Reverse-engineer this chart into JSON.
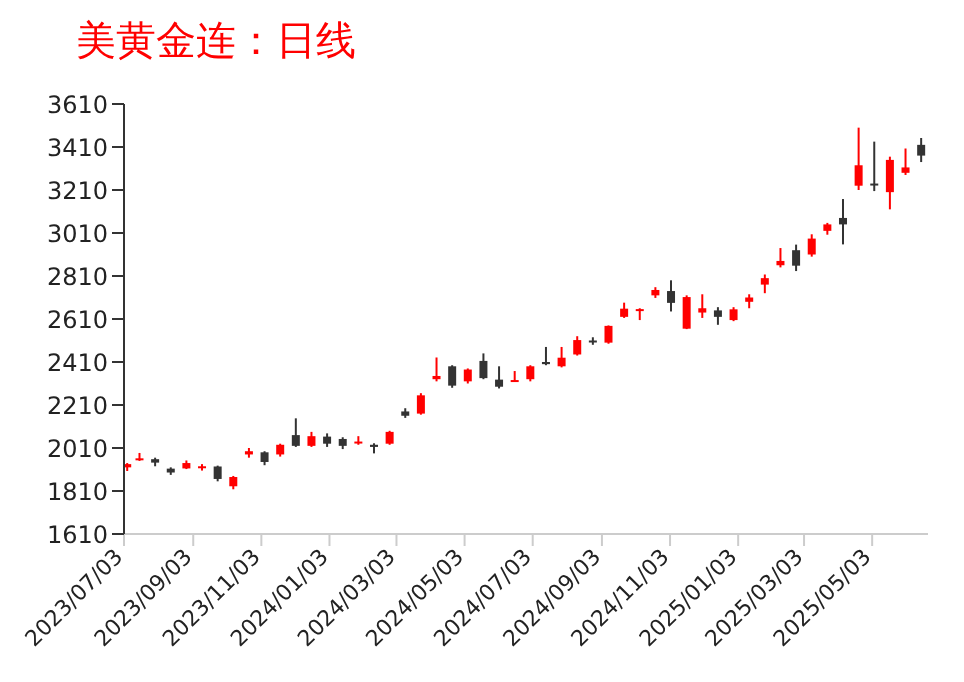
{
  "chart_data": {
    "type": "candlestick",
    "title": "美黄金连：日线",
    "x": [
      "2023-07-06",
      "2023-07-17",
      "2023-07-31",
      "2023-08-14",
      "2023-08-28",
      "2023-09-11",
      "2023-09-25",
      "2023-10-09",
      "2023-10-23",
      "2023-11-06",
      "2023-11-20",
      "2023-12-04",
      "2023-12-18",
      "2024-01-01",
      "2024-01-15",
      "2024-01-29",
      "2024-02-12",
      "2024-02-26",
      "2024-03-11",
      "2024-03-25",
      "2024-04-08",
      "2024-04-22",
      "2024-05-06",
      "2024-05-20",
      "2024-06-03",
      "2024-06-17",
      "2024-07-01",
      "2024-07-15",
      "2024-07-29",
      "2024-08-12",
      "2024-08-26",
      "2024-09-09",
      "2024-09-23",
      "2024-10-07",
      "2024-10-21",
      "2024-11-04",
      "2024-11-18",
      "2024-12-02",
      "2024-12-16",
      "2024-12-30",
      "2025-01-13",
      "2025-01-27",
      "2025-02-10",
      "2025-02-24",
      "2025-03-10",
      "2025-03-24",
      "2025-04-07",
      "2025-04-21",
      "2025-05-05",
      "2025-05-19",
      "2025-06-02",
      "2025-06-16"
    ],
    "ohlc": [
      [
        1920,
        1940,
        1903,
        1935
      ],
      [
        1955,
        1987,
        1950,
        1962
      ],
      [
        1958,
        1965,
        1925,
        1942
      ],
      [
        1914,
        1920,
        1885,
        1896
      ],
      [
        1915,
        1952,
        1912,
        1940
      ],
      [
        1918,
        1935,
        1905,
        1925
      ],
      [
        1924,
        1928,
        1855,
        1866
      ],
      [
        1832,
        1880,
        1818,
        1875
      ],
      [
        1980,
        2010,
        1965,
        1995
      ],
      [
        1990,
        1995,
        1930,
        1945
      ],
      [
        1980,
        2030,
        1970,
        2025
      ],
      [
        2070,
        2148,
        2015,
        2020
      ],
      [
        2020,
        2085,
        2015,
        2065
      ],
      [
        2063,
        2078,
        2015,
        2030
      ],
      [
        2052,
        2060,
        2005,
        2020
      ],
      [
        2032,
        2065,
        2025,
        2040
      ],
      [
        2025,
        2032,
        1985,
        2015
      ],
      [
        2030,
        2090,
        2025,
        2085
      ],
      [
        2180,
        2195,
        2150,
        2160
      ],
      [
        2170,
        2265,
        2165,
        2255
      ],
      [
        2330,
        2431,
        2320,
        2345
      ],
      [
        2390,
        2395,
        2290,
        2300
      ],
      [
        2320,
        2380,
        2310,
        2375
      ],
      [
        2415,
        2450,
        2330,
        2335
      ],
      [
        2328,
        2390,
        2287,
        2295
      ],
      [
        2320,
        2368,
        2318,
        2326
      ],
      [
        2330,
        2395,
        2320,
        2390
      ],
      [
        2410,
        2480,
        2395,
        2400
      ],
      [
        2390,
        2480,
        2385,
        2430
      ],
      [
        2445,
        2530,
        2440,
        2512
      ],
      [
        2510,
        2525,
        2490,
        2503
      ],
      [
        2500,
        2580,
        2495,
        2578
      ],
      [
        2620,
        2686,
        2615,
        2658
      ],
      [
        2650,
        2660,
        2605,
        2656
      ],
      [
        2720,
        2758,
        2708,
        2745
      ],
      [
        2740,
        2790,
        2645,
        2685
      ],
      [
        2565,
        2720,
        2563,
        2712
      ],
      [
        2640,
        2725,
        2615,
        2660
      ],
      [
        2650,
        2665,
        2583,
        2620
      ],
      [
        2605,
        2665,
        2600,
        2655
      ],
      [
        2690,
        2725,
        2660,
        2710
      ],
      [
        2770,
        2817,
        2730,
        2800
      ],
      [
        2860,
        2940,
        2850,
        2880
      ],
      [
        2930,
        2956,
        2833,
        2858
      ],
      [
        2910,
        3004,
        2900,
        2984
      ],
      [
        3020,
        3057,
        3002,
        3050
      ],
      [
        3080,
        3168,
        2957,
        3050
      ],
      [
        3230,
        3500,
        3210,
        3325
      ],
      [
        3240,
        3435,
        3205,
        3235
      ],
      [
        3200,
        3365,
        3120,
        3350
      ],
      [
        3290,
        3403,
        3280,
        3315
      ],
      [
        3420,
        3452,
        3340,
        3370
      ]
    ],
    "colors": [
      "#ff0000",
      "#ff0000",
      "#333333",
      "#333333",
      "#ff0000",
      "#ff0000",
      "#333333",
      "#ff0000",
      "#ff0000",
      "#333333",
      "#ff0000",
      "#333333",
      "#ff0000",
      "#333333",
      "#333333",
      "#ff0000",
      "#333333",
      "#ff0000",
      "#333333",
      "#ff0000",
      "#ff0000",
      "#333333",
      "#ff0000",
      "#333333",
      "#333333",
      "#ff0000",
      "#ff0000",
      "#333333",
      "#ff0000",
      "#ff0000",
      "#333333",
      "#ff0000",
      "#ff0000",
      "#ff0000",
      "#ff0000",
      "#333333",
      "#ff0000",
      "#ff0000",
      "#333333",
      "#ff0000",
      "#ff0000",
      "#ff0000",
      "#ff0000",
      "#333333",
      "#ff0000",
      "#ff0000",
      "#333333",
      "#ff0000",
      "#333333",
      "#ff0000",
      "#ff0000",
      "#333333"
    ],
    "xlim": [
      "2023-07-03",
      "2025-06-22"
    ],
    "xticks": [
      {
        "value": "2023-07-03",
        "label": "2023/07/03"
      },
      {
        "value": "2023-09-03",
        "label": "2023/09/03"
      },
      {
        "value": "2023-11-03",
        "label": "2023/11/03"
      },
      {
        "value": "2024-01-03",
        "label": "2024/01/03"
      },
      {
        "value": "2024-03-03",
        "label": "2024/03/03"
      },
      {
        "value": "2024-05-03",
        "label": "2024/05/03"
      },
      {
        "value": "2024-07-03",
        "label": "2024/07/03"
      },
      {
        "value": "2024-09-03",
        "label": "2024/09/03"
      },
      {
        "value": "2024-11-03",
        "label": "2024/11/03"
      },
      {
        "value": "2025-01-03",
        "label": "2025/01/03"
      },
      {
        "value": "2025-03-03",
        "label": "2025/03/03"
      },
      {
        "value": "2025-05-03",
        "label": "2025/05/03"
      }
    ],
    "ylim": [
      1610,
      3610
    ],
    "yticks": [
      1610,
      1810,
      2010,
      2210,
      2410,
      2610,
      2810,
      3010,
      3210,
      3410,
      3610
    ]
  }
}
